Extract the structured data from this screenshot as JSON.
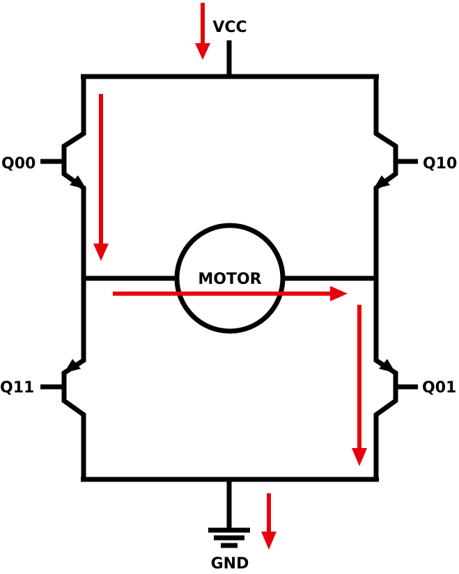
{
  "labels": {
    "vcc": "VCC",
    "gnd": "GND",
    "motor": "MOTOR",
    "q00": "Q00",
    "q10": "Q10",
    "q11": "Q11",
    "q01": "Q01"
  },
  "colors": {
    "wire": "#000000",
    "current_arrow": "#e8000b",
    "background": "#ffffff"
  }
}
